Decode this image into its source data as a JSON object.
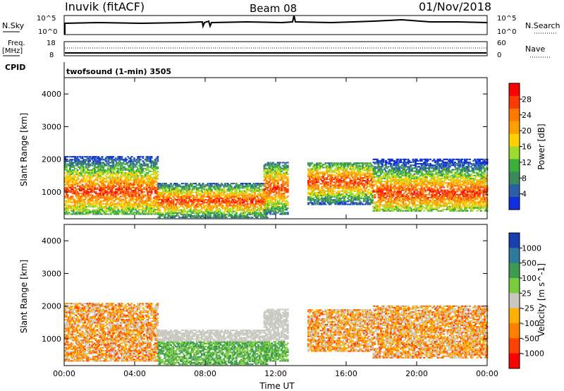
{
  "header": {
    "station": "Inuvik (fitACF)",
    "beam": "Beam 08",
    "date": "01/Nov/2018"
  },
  "top_panels": {
    "nsky_label": "N.Sky",
    "nsearch_label": "N.Search",
    "nsky_ticks": [
      "10^5",
      "10^0"
    ],
    "nsearch_ticks": [
      "10^5",
      "10^0"
    ],
    "freq_label": "Freq.",
    "freq_unit": "[MHz]",
    "freq_ticks": [
      "18",
      "8"
    ],
    "nave_label": "Nave",
    "nave_ticks": [
      "60",
      "0"
    ],
    "cpid_label": "CPID",
    "cpid_text": "twofsound (1-min) 3505"
  },
  "chart_data": [
    {
      "type": "heatmap",
      "panel": "power",
      "xlabel": "",
      "ylabel": "Slant Range [km]",
      "x_ticks": [
        "00:00",
        "04:00",
        "08:00",
        "12:00",
        "16:00",
        "20:00",
        "00:00"
      ],
      "xlim_hours": [
        0,
        24
      ],
      "y_ticks": [
        1000,
        2000,
        3000,
        4000
      ],
      "ylim_km": [
        180,
        4500
      ],
      "colorbar": {
        "label": "Power [dB]",
        "ticks": [
          "28",
          "24",
          "20",
          "16",
          "12",
          "8",
          "4"
        ],
        "colors": [
          "#ff0000",
          "#ff3a00",
          "#ff7800",
          "#ffa000",
          "#ffd000",
          "#9ddb2c",
          "#3bb039",
          "#3a8a5c",
          "#2b5fa6",
          "#1030e0"
        ]
      }
    },
    {
      "type": "heatmap",
      "panel": "velocity",
      "xlabel": "Time UT",
      "ylabel": "Slant Range [km]",
      "x_ticks": [
        "00:00",
        "04:00",
        "08:00",
        "12:00",
        "16:00",
        "20:00",
        "00:00"
      ],
      "xlim_hours": [
        0,
        24
      ],
      "y_ticks": [
        1000,
        2000,
        3000,
        4000
      ],
      "ylim_km": [
        180,
        4500
      ],
      "colorbar": {
        "label": "Velocity [m s^-1]",
        "ticks": [
          "1000",
          "500",
          "100",
          "25",
          "-25",
          "-100",
          "-500",
          "-1000"
        ],
        "colors": [
          "#1a3fb0",
          "#2e7a9c",
          "#3d9a50",
          "#79cc3a",
          "#c8c8c0",
          "#ffb000",
          "#ff8000",
          "#ff4000",
          "#ff0000"
        ]
      }
    }
  ]
}
